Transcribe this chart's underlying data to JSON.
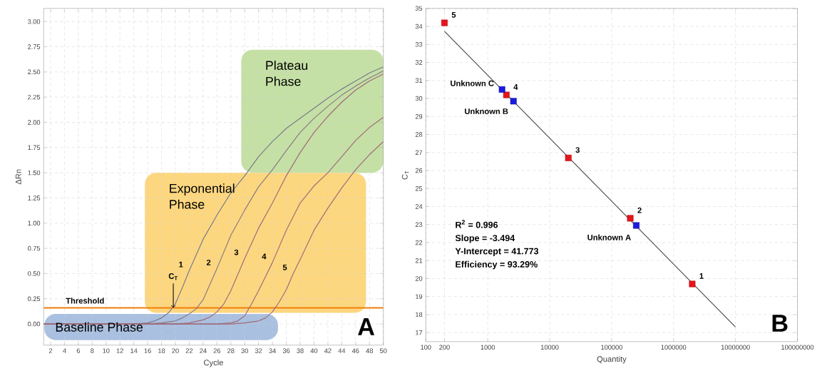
{
  "chart_data": [
    {
      "type": "line",
      "xlabel": "Cycle",
      "ylabel": "ΔRn",
      "xlim": [
        1,
        50
      ],
      "ylim": [
        -0.21,
        3.13
      ],
      "xticks": [
        2,
        4,
        6,
        8,
        10,
        12,
        14,
        16,
        18,
        20,
        22,
        24,
        26,
        28,
        30,
        32,
        34,
        36,
        38,
        40,
        42,
        44,
        46,
        48,
        50
      ],
      "yticks": [
        {
          "value": 0,
          "label": "0.00"
        },
        {
          "value": 0.25,
          "label": "0.25"
        },
        {
          "value": 0.5,
          "label": "0.50"
        },
        {
          "value": 0.75,
          "label": "0.75"
        },
        {
          "value": 1,
          "label": "1.00"
        },
        {
          "value": 1.25,
          "label": "1.25"
        },
        {
          "value": 1.5,
          "label": "1.50"
        },
        {
          "value": 1.75,
          "label": "1.75"
        },
        {
          "value": 2,
          "label": "2.00"
        },
        {
          "value": 2.25,
          "label": "2.25"
        },
        {
          "value": 2.5,
          "label": "2.50"
        },
        {
          "value": 2.75,
          "label": "2.75"
        },
        {
          "value": 3,
          "label": "3.00"
        }
      ],
      "grid": true,
      "marker": "none",
      "line_style": "solid",
      "series": [
        {
          "name": "1",
          "color": "#7a7a8a",
          "x": [
            1,
            4,
            8,
            12,
            14,
            16,
            17,
            18,
            19,
            20,
            21,
            22,
            24,
            26,
            28,
            30,
            32,
            34,
            36,
            38,
            40,
            42,
            44,
            46,
            48,
            50
          ],
          "values": [
            0,
            0,
            0,
            0,
            0,
            0.01,
            0.03,
            0.06,
            0.11,
            0.2,
            0.36,
            0.53,
            0.84,
            1.08,
            1.3,
            1.47,
            1.66,
            1.81,
            1.94,
            2.04,
            2.14,
            2.24,
            2.33,
            2.41,
            2.49,
            2.55
          ]
        },
        {
          "name": "2",
          "color": "#8a7a82",
          "x": [
            1,
            10,
            16,
            18,
            20,
            21,
            22,
            23,
            24,
            26,
            28,
            30,
            32,
            34,
            36,
            38,
            40,
            42,
            44,
            46,
            48,
            50
          ],
          "values": [
            0,
            0,
            0,
            0.01,
            0.03,
            0.06,
            0.1,
            0.15,
            0.24,
            0.55,
            0.88,
            1.13,
            1.36,
            1.53,
            1.72,
            1.9,
            2.04,
            2.16,
            2.27,
            2.36,
            2.44,
            2.51
          ]
        },
        {
          "name": "3",
          "color": "#a06a78",
          "x": [
            1,
            10,
            20,
            22,
            24,
            25,
            26,
            27,
            28,
            30,
            32,
            34,
            36,
            38,
            40,
            42,
            44,
            46,
            48,
            50
          ],
          "values": [
            0,
            0,
            0,
            0.01,
            0.04,
            0.07,
            0.12,
            0.2,
            0.33,
            0.65,
            0.95,
            1.2,
            1.47,
            1.7,
            1.9,
            2.06,
            2.2,
            2.32,
            2.41,
            2.48
          ]
        },
        {
          "name": "4",
          "color": "#a06a78",
          "x": [
            1,
            10,
            20,
            26,
            28,
            29,
            30,
            31,
            32,
            33,
            34,
            36,
            38,
            40,
            42,
            44,
            46,
            48,
            50
          ],
          "values": [
            0,
            0,
            0,
            0,
            0.01,
            0.03,
            0.08,
            0.2,
            0.33,
            0.47,
            0.61,
            0.93,
            1.2,
            1.37,
            1.5,
            1.66,
            1.82,
            1.95,
            2.05
          ]
        },
        {
          "name": "5",
          "color": "#a06a78",
          "x": [
            1,
            10,
            20,
            28,
            30,
            32,
            33,
            34,
            35,
            36,
            37,
            38,
            40,
            42,
            44,
            46,
            48,
            50
          ],
          "values": [
            0,
            0,
            0,
            0,
            0.01,
            0.03,
            0.06,
            0.12,
            0.22,
            0.34,
            0.5,
            0.64,
            0.93,
            1.15,
            1.35,
            1.53,
            1.68,
            1.81
          ]
        }
      ],
      "ref_lines": [
        {
          "axis": "y",
          "value": 0.16,
          "label": "Threshold",
          "color": "#f07f09"
        }
      ],
      "annotations": [
        "Plateau Phase",
        "Exponential Phase",
        "Baseline Phase",
        {
          "text": "C$_{T}$",
          "x": 19.7,
          "y": 0.16
        },
        "A"
      ]
    },
    {
      "type": "scatter",
      "xlabel": "Quantity",
      "ylabel": "C$_{T}$",
      "log": "x",
      "xlim": [
        100,
        100000000
      ],
      "ylim": [
        16.5,
        35
      ],
      "xticks": [
        100,
        200,
        1000,
        10000,
        100000,
        1000000,
        10000000,
        100000000
      ],
      "yticks": [
        17,
        18,
        19,
        20,
        21,
        22,
        23,
        24,
        25,
        26,
        27,
        28,
        29,
        30,
        31,
        32,
        33,
        34,
        35
      ],
      "grid": true,
      "marker": "square",
      "series": [
        {
          "type": "line",
          "marker": "none",
          "color": "#404040",
          "x": [
            200,
            10000000
          ],
          "values": [
            33.73,
            17.31
          ]
        },
        {
          "color": "#e8141b",
          "x": [
            200,
            2000,
            20000,
            200000,
            2000000
          ],
          "values": [
            34.2,
            30.2,
            26.7,
            23.35,
            19.7
          ]
        },
        {
          "color": "#1a1ae0",
          "x": [
            1700,
            2600,
            250000
          ],
          "values": [
            30.5,
            29.85,
            22.95
          ]
        }
      ],
      "annotations": [
        {
          "text": "5",
          "x": 200,
          "y": 34.2
        },
        {
          "text": "4",
          "x": 2000,
          "y": 30.2
        },
        {
          "text": "3",
          "x": 20000,
          "y": 26.7
        },
        {
          "text": "2",
          "x": 200000,
          "y": 23.35
        },
        {
          "text": "1",
          "x": 2000000,
          "y": 19.7
        },
        {
          "text": "Unknown C",
          "x": 1700,
          "y": 30.5
        },
        {
          "text": "Unknown B",
          "x": 2600,
          "y": 29.85
        },
        {
          "text": "Unknown A",
          "x": 250000,
          "y": 22.95
        },
        "R$^{2}$ = 0.996",
        "Slope = -3.494",
        "Y-Intercept = 41.773",
        "Efficiency  = 93.29%",
        "B"
      ]
    }
  ]
}
